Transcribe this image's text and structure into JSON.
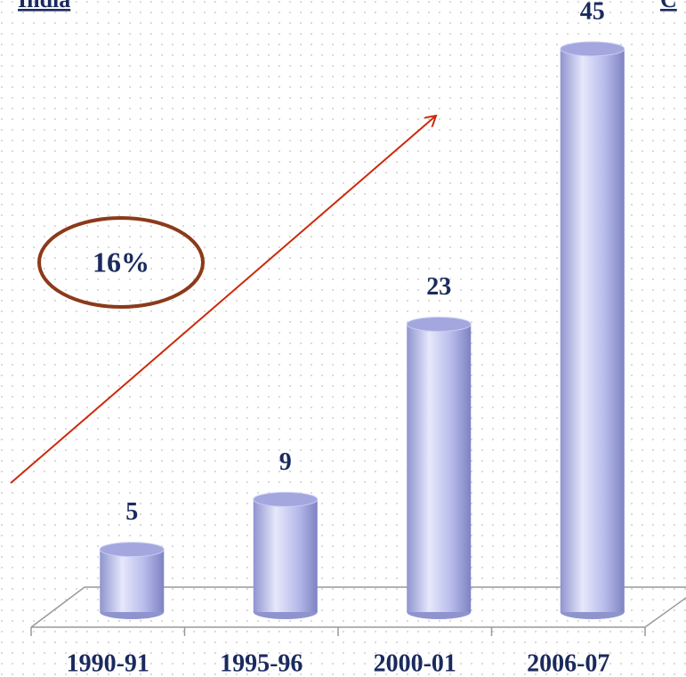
{
  "chart_data": {
    "type": "bar",
    "title": "India",
    "subtitle": "C",
    "annotations": [
      "16%"
    ],
    "categories": [
      "1990-91",
      "1995-96",
      "2000-01",
      "2006-07"
    ],
    "values": [
      5,
      9,
      23,
      45
    ],
    "color": "#b4b8ec"
  }
}
